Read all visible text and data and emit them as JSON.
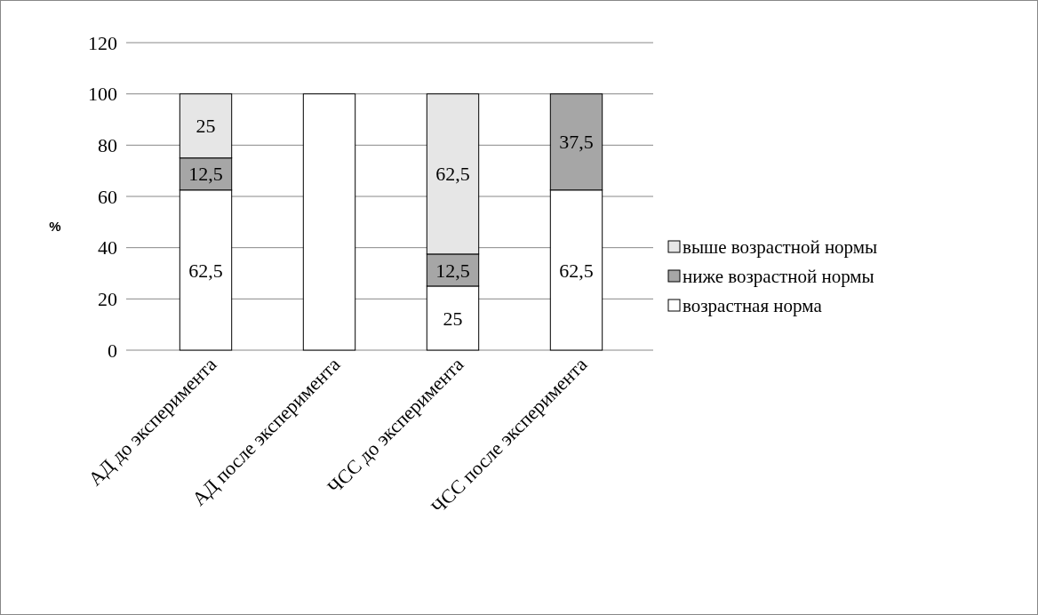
{
  "chart_data": {
    "type": "bar",
    "stacked": true,
    "ylabel": "%",
    "categories": [
      "АД до эксперимента",
      "АД после эксперимента",
      "ЧСС до эксперимента",
      "ЧСС после эксперимента"
    ],
    "series": [
      {
        "name": "возрастная норма",
        "color": "#ffffff",
        "values": [
          62.5,
          100,
          25,
          62.5
        ],
        "value_labels": [
          "62,5",
          null,
          "25",
          "62,5"
        ]
      },
      {
        "name": "ниже возрастной нормы",
        "color": "#a6a6a6",
        "values": [
          12.5,
          0,
          12.5,
          37.5
        ],
        "value_labels": [
          "12,5",
          null,
          "12,5",
          "37,5"
        ]
      },
      {
        "name": "выше возрастной нормы",
        "color": "#e6e6e6",
        "values": [
          25,
          0,
          62.5,
          0
        ],
        "value_labels": [
          "25",
          null,
          "62,5",
          null
        ]
      }
    ],
    "ylim": [
      0,
      120
    ],
    "yticks": [
      0,
      20,
      40,
      60,
      80,
      100,
      120
    ],
    "grid": "y",
    "legend": "right"
  }
}
